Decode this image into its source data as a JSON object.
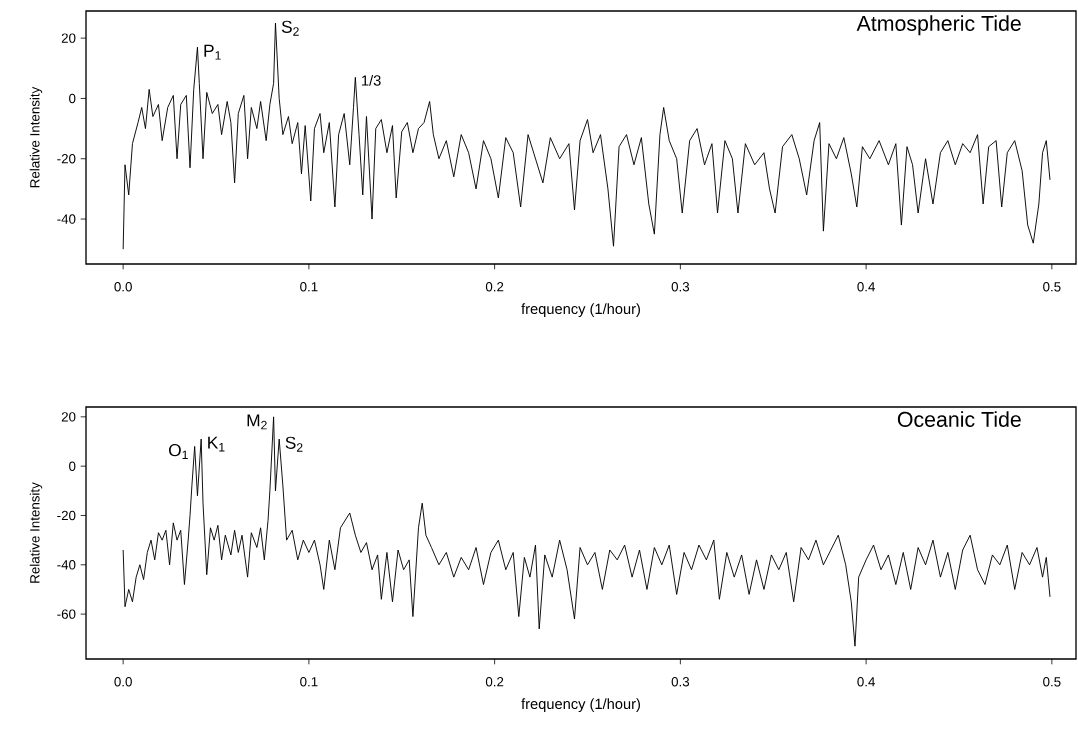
{
  "chart_data": [
    {
      "type": "line",
      "title": "Atmospheric Tide",
      "xlabel": "frequency (1/hour)",
      "ylabel": "Relative Intensity",
      "xlim": [
        -0.02,
        0.513
      ],
      "ylim": [
        -54.9,
        29
      ],
      "xticks": [
        {
          "value": 0,
          "label": "0.0"
        },
        0.1,
        0.2,
        0.3,
        0.4,
        0.5
      ],
      "yticks": [
        -40,
        -20,
        0,
        20
      ],
      "annotations": [
        {
          "text": "P$_{1}$",
          "x": 0.04,
          "y": 17
        },
        {
          "text": "S$_{2}$",
          "x": 0.082,
          "y": 25
        },
        {
          "text": "1/3",
          "x": 0.125,
          "y": 7
        }
      ],
      "series": [
        {
          "color": "#000000",
          "x": [
            0,
            0.001,
            0.003,
            0.005,
            0.008,
            0.01,
            0.012,
            0.014,
            0.016,
            0.019,
            0.021,
            0.024,
            0.027,
            0.029,
            0.031,
            0.034,
            0.036,
            0.038,
            0.04,
            0.041,
            0.043,
            0.045,
            0.048,
            0.051,
            0.053,
            0.056,
            0.058,
            0.06,
            0.062,
            0.065,
            0.067,
            0.069,
            0.072,
            0.074,
            0.077,
            0.079,
            0.081,
            0.082,
            0.084,
            0.086,
            0.089,
            0.091,
            0.094,
            0.096,
            0.098,
            0.101,
            0.103,
            0.106,
            0.108,
            0.111,
            0.114,
            0.116,
            0.119,
            0.122,
            0.124,
            0.125,
            0.127,
            0.129,
            0.131,
            0.134,
            0.136,
            0.139,
            0.142,
            0.145,
            0.147,
            0.15,
            0.153,
            0.156,
            0.159,
            0.162,
            0.165,
            0.167,
            0.17,
            0.174,
            0.178,
            0.182,
            0.186,
            0.19,
            0.194,
            0.198,
            0.202,
            0.206,
            0.21,
            0.214,
            0.218,
            0.222,
            0.226,
            0.23,
            0.235,
            0.24,
            0.243,
            0.246,
            0.25,
            0.253,
            0.257,
            0.261,
            0.264,
            0.267,
            0.271,
            0.275,
            0.279,
            0.283,
            0.286,
            0.289,
            0.291,
            0.294,
            0.298,
            0.301,
            0.305,
            0.309,
            0.313,
            0.317,
            0.32,
            0.324,
            0.328,
            0.331,
            0.335,
            0.34,
            0.345,
            0.348,
            0.351,
            0.355,
            0.36,
            0.364,
            0.368,
            0.372,
            0.375,
            0.377,
            0.38,
            0.384,
            0.388,
            0.392,
            0.395,
            0.398,
            0.402,
            0.407,
            0.412,
            0.416,
            0.419,
            0.422,
            0.425,
            0.428,
            0.432,
            0.436,
            0.44,
            0.444,
            0.448,
            0.452,
            0.456,
            0.46,
            0.463,
            0.466,
            0.47,
            0.473,
            0.476,
            0.48,
            0.484,
            0.487,
            0.49,
            0.493,
            0.495,
            0.497,
            0.499
          ],
          "values": [
            -50,
            -22,
            -32,
            -15,
            -8,
            -3,
            -10,
            3,
            -6,
            -2,
            -14,
            -3,
            1,
            -20,
            -2,
            1,
            -23,
            3,
            17,
            5,
            -20,
            2,
            -5,
            -2,
            -12,
            -1,
            -8,
            -28,
            -5,
            1,
            -20,
            -3,
            -10,
            -1,
            -14,
            -2,
            5,
            25,
            0,
            -12,
            -6,
            -15,
            -8,
            -25,
            -9,
            -34,
            -10,
            -5,
            -18,
            -8,
            -36,
            -12,
            -5,
            -22,
            -3,
            7,
            -12,
            -32,
            -6,
            -40,
            -10,
            -7,
            -18,
            -9,
            -33,
            -11,
            -8,
            -18,
            -10,
            -8,
            -1,
            -12,
            -20,
            -14,
            -26,
            -12,
            -18,
            -30,
            -14,
            -20,
            -33,
            -13,
            -18,
            -36,
            -12,
            -20,
            -28,
            -13,
            -20,
            -15,
            -37,
            -14,
            -7,
            -18,
            -12,
            -30,
            -49,
            -16,
            -12,
            -22,
            -13,
            -35,
            -45,
            -12,
            -3,
            -14,
            -20,
            -38,
            -14,
            -10,
            -22,
            -15,
            -38,
            -14,
            -20,
            -38,
            -15,
            -22,
            -18,
            -30,
            -38,
            -16,
            -12,
            -20,
            -32,
            -14,
            -8,
            -44,
            -15,
            -20,
            -13,
            -25,
            -36,
            -16,
            -20,
            -14,
            -22,
            -15,
            -42,
            -16,
            -22,
            -38,
            -20,
            -35,
            -18,
            -14,
            -22,
            -15,
            -18,
            -12,
            -35,
            -16,
            -14,
            -36,
            -18,
            -14,
            -24,
            -42,
            -48,
            -35,
            -18,
            -14,
            -27
          ]
        }
      ]
    },
    {
      "type": "line",
      "title": "Oceanic Tide",
      "xlabel": "frequency (1/hour)",
      "ylabel": "Relative Intensity",
      "xlim": [
        -0.02,
        0.513
      ],
      "ylim": [
        -78.2,
        24
      ],
      "xticks": [
        {
          "value": 0,
          "label": "0.0"
        },
        0.1,
        0.2,
        0.3,
        0.4,
        0.5
      ],
      "yticks": [
        -60,
        -40,
        -20,
        0,
        20
      ],
      "annotations": [
        {
          "text": "O$_{1}$",
          "x": 0.0385,
          "y": 8
        },
        {
          "text": "K$_{1}$",
          "x": 0.042,
          "y": 11
        },
        {
          "text": "M$_{2}$",
          "x": 0.081,
          "y": 20
        },
        {
          "text": "S$_{2}$",
          "x": 0.084,
          "y": 11
        }
      ],
      "series": [
        {
          "color": "#000000",
          "x": [
            0,
            0.001,
            0.003,
            0.005,
            0.007,
            0.009,
            0.011,
            0.013,
            0.015,
            0.017,
            0.019,
            0.021,
            0.023,
            0.025,
            0.027,
            0.029,
            0.031,
            0.033,
            0.035,
            0.036,
            0.037,
            0.0385,
            0.04,
            0.042,
            0.043,
            0.045,
            0.047,
            0.049,
            0.051,
            0.053,
            0.055,
            0.058,
            0.06,
            0.062,
            0.064,
            0.067,
            0.069,
            0.072,
            0.074,
            0.076,
            0.078,
            0.079,
            0.081,
            0.082,
            0.084,
            0.086,
            0.088,
            0.091,
            0.094,
            0.097,
            0.1,
            0.103,
            0.106,
            0.108,
            0.111,
            0.114,
            0.117,
            0.122,
            0.125,
            0.128,
            0.131,
            0.134,
            0.137,
            0.139,
            0.142,
            0.145,
            0.148,
            0.151,
            0.154,
            0.156,
            0.159,
            0.161,
            0.163,
            0.166,
            0.17,
            0.174,
            0.178,
            0.182,
            0.186,
            0.19,
            0.194,
            0.198,
            0.202,
            0.206,
            0.21,
            0.213,
            0.216,
            0.219,
            0.222,
            0.224,
            0.227,
            0.231,
            0.235,
            0.239,
            0.243,
            0.246,
            0.25,
            0.254,
            0.258,
            0.262,
            0.266,
            0.27,
            0.274,
            0.278,
            0.282,
            0.286,
            0.29,
            0.294,
            0.298,
            0.302,
            0.306,
            0.31,
            0.314,
            0.318,
            0.321,
            0.325,
            0.329,
            0.333,
            0.337,
            0.341,
            0.345,
            0.349,
            0.353,
            0.357,
            0.361,
            0.365,
            0.369,
            0.373,
            0.377,
            0.381,
            0.385,
            0.389,
            0.392,
            0.394,
            0.396,
            0.4,
            0.404,
            0.408,
            0.412,
            0.416,
            0.42,
            0.424,
            0.428,
            0.432,
            0.436,
            0.44,
            0.444,
            0.448,
            0.452,
            0.456,
            0.46,
            0.464,
            0.468,
            0.472,
            0.476,
            0.48,
            0.484,
            0.488,
            0.492,
            0.495,
            0.497,
            0.499
          ],
          "values": [
            -34,
            -57,
            -50,
            -55,
            -45,
            -40,
            -46,
            -35,
            -30,
            -38,
            -27,
            -30,
            -26,
            -40,
            -23,
            -30,
            -26,
            -48,
            -30,
            -20,
            -8,
            8,
            -12,
            11,
            -15,
            -44,
            -25,
            -30,
            -24,
            -38,
            -28,
            -36,
            -26,
            -35,
            -28,
            -45,
            -27,
            -33,
            -25,
            -38,
            -22,
            -10,
            20,
            -10,
            11,
            -8,
            -30,
            -26,
            -38,
            -30,
            -35,
            -30,
            -40,
            -50,
            -30,
            -42,
            -25,
            -19,
            -28,
            -35,
            -31,
            -42,
            -36,
            -54,
            -35,
            -55,
            -34,
            -42,
            -38,
            -61,
            -25,
            -15,
            -28,
            -33,
            -40,
            -35,
            -45,
            -37,
            -42,
            -33,
            -48,
            -35,
            -30,
            -42,
            -35,
            -61,
            -37,
            -45,
            -32,
            -66,
            -36,
            -45,
            -30,
            -42,
            -62,
            -33,
            -40,
            -35,
            -50,
            -34,
            -38,
            -32,
            -45,
            -34,
            -50,
            -33,
            -40,
            -32,
            -52,
            -35,
            -42,
            -32,
            -38,
            -30,
            -54,
            -35,
            -45,
            -36,
            -52,
            -38,
            -50,
            -36,
            -42,
            -35,
            -55,
            -33,
            -38,
            -30,
            -40,
            -34,
            -28,
            -40,
            -55,
            -73,
            -45,
            -38,
            -32,
            -42,
            -36,
            -48,
            -35,
            -50,
            -33,
            -40,
            -30,
            -45,
            -35,
            -50,
            -34,
            -28,
            -42,
            -48,
            -36,
            -40,
            -32,
            -50,
            -35,
            -40,
            -33,
            -45,
            -37,
            -53
          ]
        }
      ]
    }
  ]
}
